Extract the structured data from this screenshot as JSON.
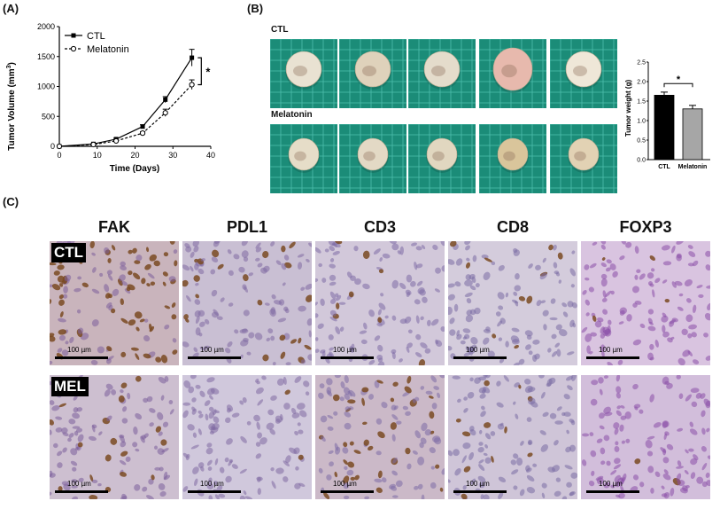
{
  "panels": {
    "a": "(A)",
    "b": "(B)",
    "c": "(C)"
  },
  "chart_a": {
    "chart_data": {
      "type": "line",
      "ylabel_main": "Tumor Volume (mm",
      "ylabel_sup": "3",
      "ylabel_tail": ")",
      "xlabel": "Time (Days)",
      "xlim": [
        0,
        40
      ],
      "ylim": [
        0,
        2000
      ],
      "xticks": [
        "0",
        "10",
        "20",
        "30",
        "40"
      ],
      "yticks": [
        "0",
        "500",
        "1000",
        "1500",
        "2000"
      ],
      "significance": "*",
      "legend": "top-left",
      "series": [
        {
          "name": "CTL",
          "x": [
            0,
            9,
            15,
            22,
            28,
            35
          ],
          "y": [
            0,
            40,
            120,
            330,
            780,
            1480
          ],
          "err": [
            0,
            10,
            15,
            30,
            50,
            140
          ]
        },
        {
          "name": "Melatonin",
          "x": [
            0,
            9,
            15,
            22,
            28,
            35
          ],
          "y": [
            0,
            30,
            90,
            220,
            560,
            1030
          ],
          "err": [
            0,
            8,
            12,
            25,
            60,
            80
          ]
        }
      ]
    }
  },
  "chart_b": {
    "chart_data": {
      "type": "bar",
      "categories": [
        "CTL",
        "Melatonin"
      ],
      "values": [
        1.65,
        1.3
      ],
      "err": [
        0.08,
        0.09
      ],
      "ylabel": "Tumor weight (g)",
      "ylim": [
        0,
        2.5
      ],
      "yticks": [
        "0.0",
        "0.5",
        "1.0",
        "1.5",
        "2.0",
        "2.5"
      ],
      "significance": "*",
      "colors": [
        "#000000",
        "#a6a6a6"
      ]
    }
  },
  "tumor_photos": {
    "ctl_label": "CTL",
    "mel_label": "Melatonin"
  },
  "ihc": {
    "markers": [
      "FAK",
      "PDL1",
      "CD3",
      "CD8",
      "FOXP3"
    ],
    "rows": [
      "CTL",
      "MEL"
    ],
    "scale": "100 µm"
  }
}
